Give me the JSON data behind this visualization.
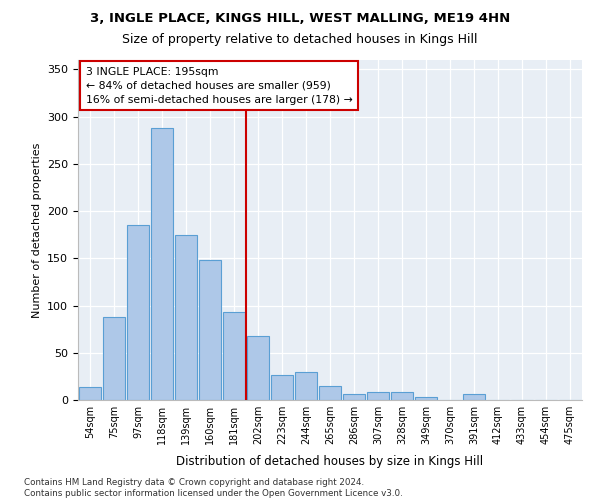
{
  "title1": "3, INGLE PLACE, KINGS HILL, WEST MALLING, ME19 4HN",
  "title2": "Size of property relative to detached houses in Kings Hill",
  "xlabel": "Distribution of detached houses by size in Kings Hill",
  "ylabel": "Number of detached properties",
  "categories": [
    "54sqm",
    "75sqm",
    "97sqm",
    "118sqm",
    "139sqm",
    "160sqm",
    "181sqm",
    "202sqm",
    "223sqm",
    "244sqm",
    "265sqm",
    "286sqm",
    "307sqm",
    "328sqm",
    "349sqm",
    "370sqm",
    "391sqm",
    "412sqm",
    "433sqm",
    "454sqm",
    "475sqm"
  ],
  "bar_values": [
    14,
    88,
    185,
    288,
    175,
    148,
    93,
    68,
    27,
    30,
    15,
    6,
    8,
    9,
    3,
    0,
    6,
    0,
    0,
    0,
    0
  ],
  "bar_color": "#aec8e8",
  "bar_edge_color": "#5a9fd4",
  "vline_color": "#cc0000",
  "vline_x": 6.5,
  "annotation_text": "3 INGLE PLACE: 195sqm\n← 84% of detached houses are smaller (959)\n16% of semi-detached houses are larger (178) →",
  "footer_text": "Contains HM Land Registry data © Crown copyright and database right 2024.\nContains public sector information licensed under the Open Government Licence v3.0.",
  "ylim": [
    0,
    360
  ],
  "yticks": [
    0,
    50,
    100,
    150,
    200,
    250,
    300,
    350
  ],
  "plot_bg_color": "#e8eef5"
}
